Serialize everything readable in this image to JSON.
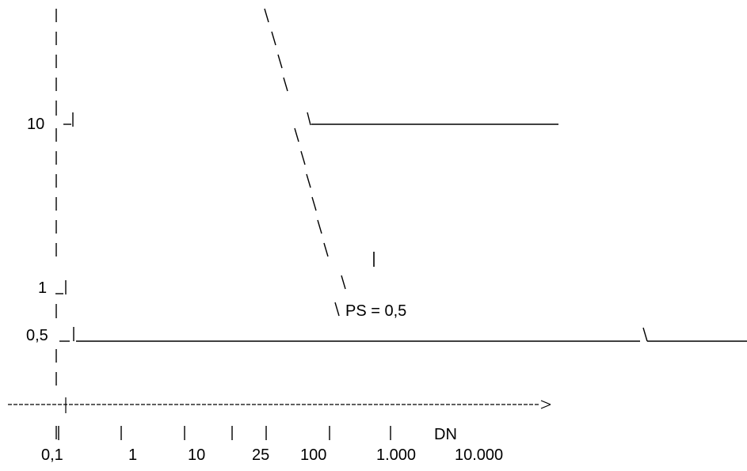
{
  "diagram": {
    "y_ticks": [
      "10",
      "1",
      "0,5"
    ],
    "x_ticks": [
      "0,1",
      "1",
      "10",
      "25",
      "100",
      "1.000",
      "10.000"
    ],
    "x_axis_label": "DN",
    "region_marker": "I",
    "annotation": "PS = 0,5"
  },
  "chart_data": {
    "type": "line",
    "title": "",
    "xlabel": "DN",
    "ylabel": "",
    "x_scale": "log",
    "y_scale": "log",
    "x_ticks": [
      "0,1",
      "1",
      "10",
      "25",
      "100",
      "1.000",
      "10.000"
    ],
    "y_ticks": [
      "0,5",
      "1",
      "10"
    ],
    "annotations": [
      "I",
      "PS = 0,5"
    ],
    "series": [
      {
        "x": [
          25,
          100,
          10000
        ],
        "y": [
          10000,
          10,
          10
        ]
      },
      {
        "x": [
          0.1,
          10000
        ],
        "y": [
          0.5,
          0.5
        ]
      }
    ]
  },
  "colors": {
    "line": "#000000",
    "background": "#ffffff"
  }
}
